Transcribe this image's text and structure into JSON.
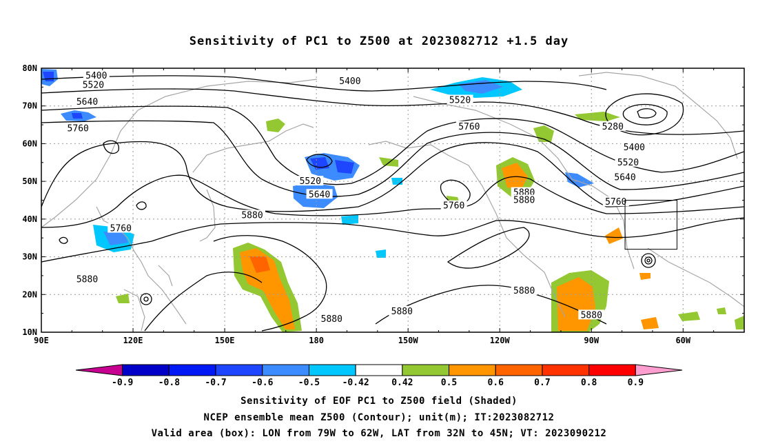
{
  "title": "Sensitivity of PC1 to Z500 at 2023082712 +1.5 day",
  "axes": {
    "lat_labels": [
      "80N",
      "70N",
      "60N",
      "50N",
      "40N",
      "30N",
      "20N",
      "10N"
    ],
    "lon_labels": [
      "90E",
      "120E",
      "150E",
      "180",
      "150W",
      "120W",
      "90W",
      "60W"
    ]
  },
  "contour_labels": [
    {
      "text": "5400",
      "lon": 108,
      "lat": 78
    },
    {
      "text": "5520",
      "lon": 107,
      "lat": 75.5
    },
    {
      "text": "5640",
      "lon": 105,
      "lat": 71
    },
    {
      "text": "5760",
      "lon": 102,
      "lat": 64
    },
    {
      "text": "5400",
      "lon": 191,
      "lat": 76.5
    },
    {
      "text": "5520",
      "lon": 227,
      "lat": 71.5
    },
    {
      "text": "5760",
      "lon": 230,
      "lat": 64.5
    },
    {
      "text": "5280",
      "lon": 277,
      "lat": 64.5
    },
    {
      "text": "5400",
      "lon": 284,
      "lat": 59
    },
    {
      "text": "5520",
      "lon": 282,
      "lat": 55
    },
    {
      "text": "5640",
      "lon": 281,
      "lat": 51
    },
    {
      "text": "5760",
      "lon": 278,
      "lat": 44.5
    },
    {
      "text": "5520",
      "lon": 178,
      "lat": 50
    },
    {
      "text": "5640",
      "lon": 181,
      "lat": 46.5
    },
    {
      "text": "5880",
      "lon": 159,
      "lat": 41
    },
    {
      "text": "5760",
      "lon": 116,
      "lat": 37.5
    },
    {
      "text": "5760",
      "lon": 225,
      "lat": 43.5
    },
    {
      "text": "5880",
      "lon": 248,
      "lat": 47
    },
    {
      "text": "5880",
      "lon": 248,
      "lat": 45
    },
    {
      "text": "5880",
      "lon": 105,
      "lat": 24
    },
    {
      "text": "5880",
      "lon": 185,
      "lat": 13.5
    },
    {
      "text": "5880",
      "lon": 208,
      "lat": 15.5
    },
    {
      "text": "5880",
      "lon": 248,
      "lat": 21
    },
    {
      "text": "5880",
      "lon": 270,
      "lat": 14.5
    }
  ],
  "colorbar": {
    "levels": [
      "-0.9",
      "-0.8",
      "-0.7",
      "-0.6",
      "-0.5",
      "-0.42",
      "0.42",
      "0.5",
      "0.6",
      "0.7",
      "0.8",
      "0.9"
    ],
    "colors": [
      "#c70091",
      "#0000c8",
      "#0019f5",
      "#1e46ff",
      "#3d8cff",
      "#00c8ff",
      "#ffffff",
      "#94c832",
      "#ff9600",
      "#ff6400",
      "#ff3200",
      "#ff0000",
      "#ff9ecf"
    ]
  },
  "valid_box": {
    "lon_min": 281,
    "lon_max": 298,
    "lat_min": 32,
    "lat_max": 45
  },
  "captions": [
    "Sensitivity of EOF PC1 to Z500 field (Shaded)",
    "NCEP ensemble mean Z500 (Contour); unit(m); IT:2023082712",
    "Valid area (box): LON from 79W to 62W, LAT from 32N to 45N; VT: 2023090212"
  ]
}
